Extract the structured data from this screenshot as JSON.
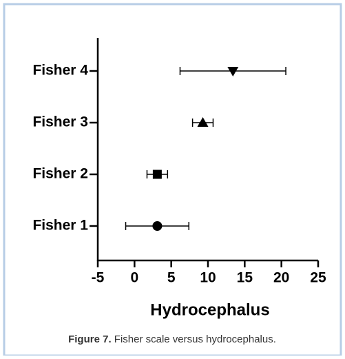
{
  "chart_data": {
    "type": "errorbar-dot",
    "xlabel": "Hydrocephalus",
    "categories": [
      "Fisher 1",
      "Fisher 2",
      "Fisher 3",
      "Fisher 4"
    ],
    "values": [
      3.1,
      3.1,
      9.3,
      13.4
    ],
    "errors": [
      4.3,
      1.4,
      1.4,
      7.2
    ],
    "markers": [
      "circle",
      "square",
      "triangle-up",
      "triangle-down"
    ],
    "color": "#000000",
    "xlim": [
      -5,
      25
    ],
    "xticks": [
      -5,
      0,
      5,
      10,
      15,
      20,
      25
    ]
  },
  "caption": {
    "label": "Figure 7.",
    "text": "Fisher scale versus hydrocephalus."
  }
}
